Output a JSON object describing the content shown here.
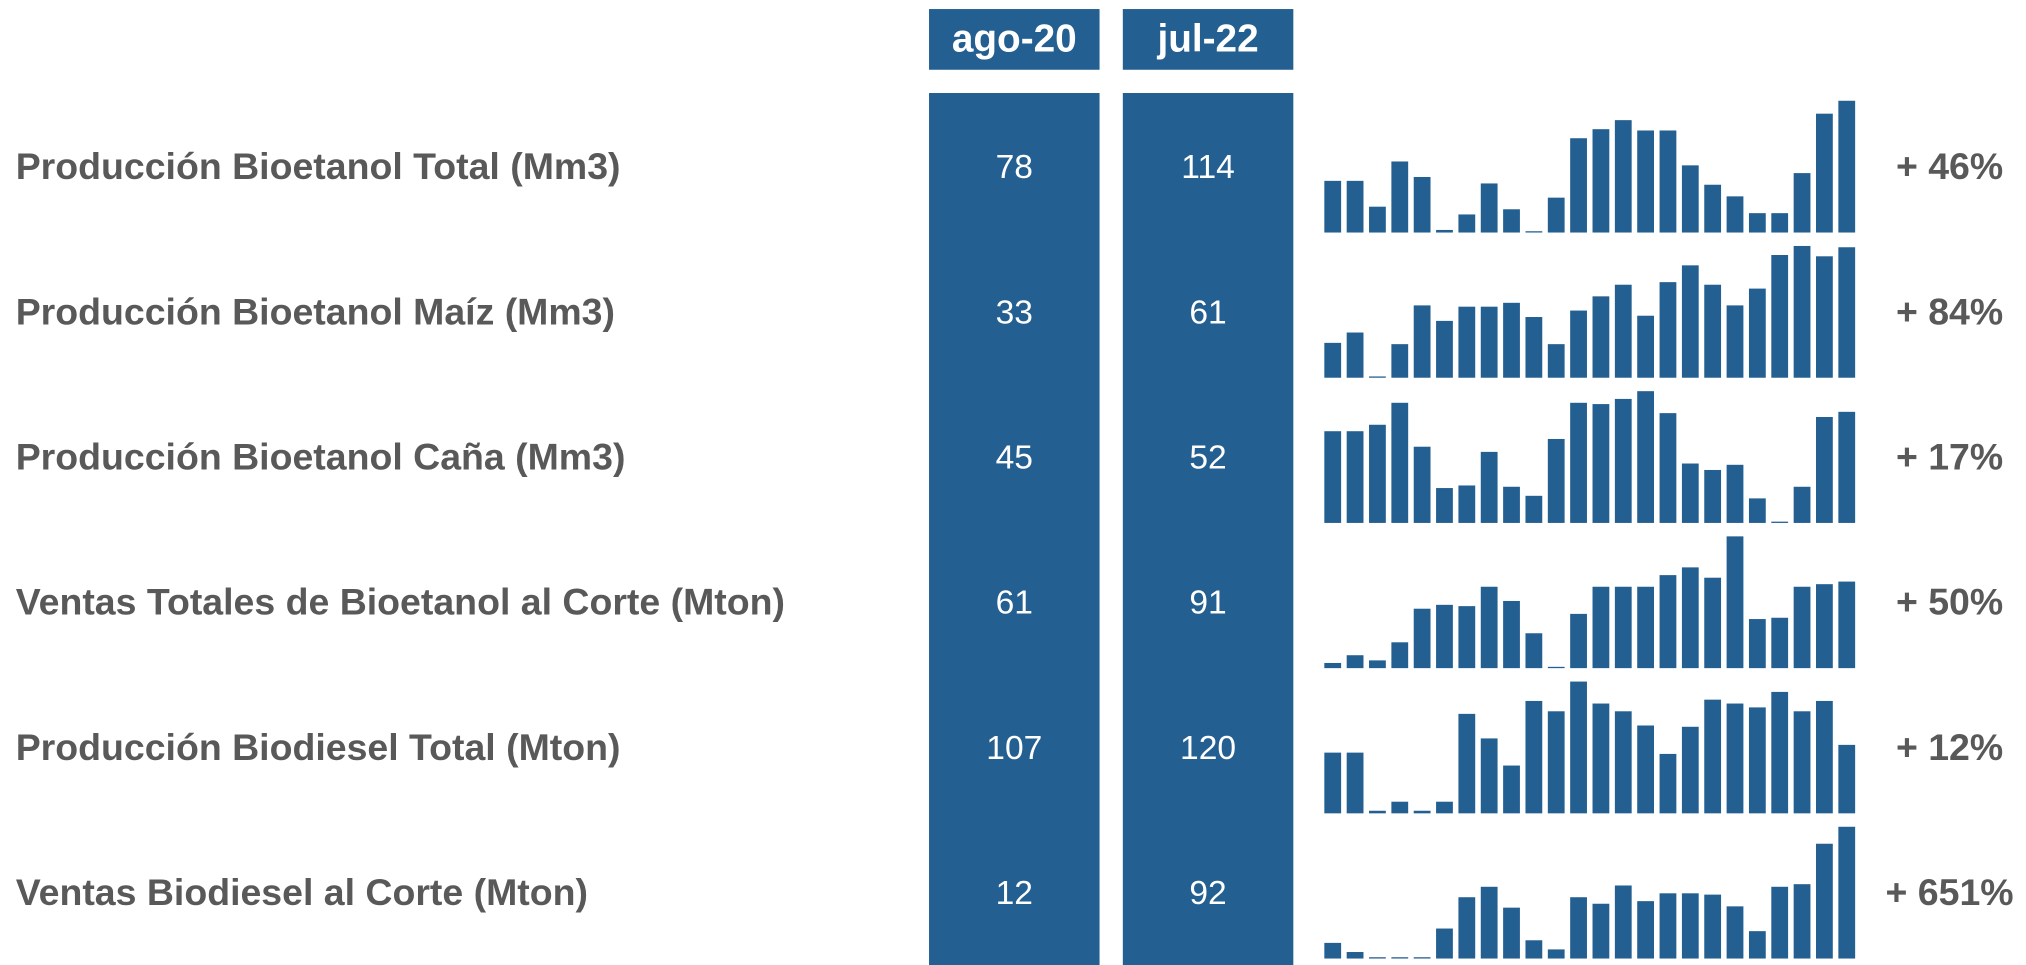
{
  "headers": [
    "ago-20",
    "jul-22"
  ],
  "color": "#245f91",
  "rows": [
    {
      "label": "Producción Bioetanol Total (Mm3)",
      "values": [
        78,
        114
      ],
      "spark": [
        40,
        40,
        20,
        55,
        43,
        2,
        14,
        38,
        18,
        1,
        27,
        73,
        80,
        87,
        79,
        79,
        52,
        37,
        28,
        15,
        15,
        46,
        92,
        102
      ],
      "change": "+ 46%"
    },
    {
      "label": "Producción Bioetanol Maíz (Mm3)",
      "values": [
        33,
        61
      ],
      "spark": [
        27,
        35,
        1,
        26,
        56,
        44,
        55,
        55,
        58,
        47,
        26,
        52,
        63,
        72,
        48,
        74,
        87,
        72,
        56,
        69,
        95,
        102,
        94,
        101
      ],
      "change": "+ 84%"
    },
    {
      "label": "Producción Bioetanol Caña (Mm3)",
      "values": [
        45,
        52
      ],
      "spark": [
        71,
        71,
        76,
        93,
        59,
        27,
        29,
        55,
        28,
        21,
        65,
        93,
        92,
        96,
        102,
        85,
        46,
        41,
        45,
        19,
        1,
        28,
        82,
        86
      ],
      "change": "+ 17%"
    },
    {
      "label": "Ventas Totales de Bioetanol al Corte (Mton)",
      "values": [
        61,
        91
      ],
      "spark": [
        4,
        10,
        6,
        20,
        46,
        49,
        48,
        63,
        52,
        27,
        1,
        42,
        63,
        63,
        63,
        72,
        78,
        70,
        102,
        38,
        39,
        63,
        65,
        67
      ],
      "change": "+ 50%"
    },
    {
      "label": "Producción Biodiesel Total (Mton)",
      "values": [
        107,
        120
      ],
      "spark": [
        47,
        47,
        2,
        9,
        2,
        9,
        77,
        58,
        37,
        87,
        79,
        102,
        85,
        79,
        68,
        46,
        67,
        88,
        85,
        82,
        94,
        79,
        87,
        53
      ],
      "change": "+ 12%"
    },
    {
      "label": "Ventas Biodiesel al Corte (Mton)",
      "values": [
        12,
        92
      ],
      "spark": [
        12,
        5,
        1,
        1,
        1,
        23,
        47,
        55,
        39,
        14,
        7,
        47,
        42,
        56,
        44,
        50,
        50,
        49,
        40,
        21,
        55,
        57,
        88,
        101
      ],
      "change": "+ 651%"
    }
  ]
}
